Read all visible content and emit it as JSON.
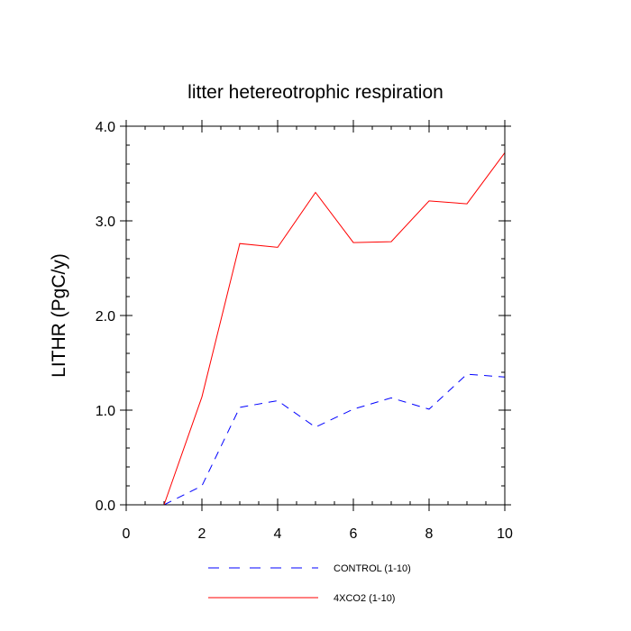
{
  "chart_data": {
    "type": "line",
    "title": "litter hetereotrophic respiration",
    "xlabel": "",
    "ylabel": "LITHR  (PgC/y)",
    "xlim": [
      0,
      10
    ],
    "ylim": [
      0,
      4
    ],
    "xticks": [
      0,
      2,
      4,
      6,
      8,
      10
    ],
    "xtick_labels": [
      "0",
      "2",
      "4",
      "6",
      "8",
      "10"
    ],
    "yticks": [
      0,
      1,
      2,
      3,
      4
    ],
    "ytick_labels": [
      "0.0",
      "1.0",
      "2.0",
      "3.0",
      "4.0"
    ],
    "grid": false,
    "legend_position": "bottom",
    "x": [
      1,
      2,
      3,
      4,
      5,
      6,
      7,
      8,
      9,
      10
    ],
    "series": [
      {
        "name": "CONTROL (1-10)",
        "color": "#0000ff",
        "dash": "dashed",
        "values": [
          0.0,
          0.2,
          1.03,
          1.1,
          0.82,
          1.01,
          1.13,
          1.01,
          1.38,
          1.35
        ]
      },
      {
        "name": "4XCO2 (1-10)",
        "color": "#ff0000",
        "dash": "solid",
        "values": [
          0.0,
          1.14,
          2.76,
          2.72,
          3.3,
          2.77,
          2.78,
          3.21,
          3.18,
          3.72
        ]
      }
    ]
  }
}
